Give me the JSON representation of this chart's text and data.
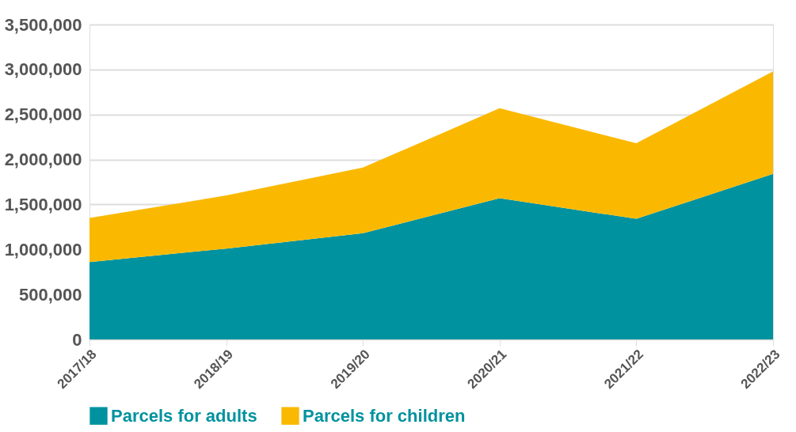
{
  "chart_data": {
    "type": "area",
    "stacked": true,
    "categories": [
      "2017/18",
      "2018/19",
      "2019/20",
      "2020/21",
      "2021/22",
      "2022/23"
    ],
    "series": [
      {
        "name": "Parcels for adults",
        "color": "#00929f",
        "values": [
          860000,
          1010000,
          1180000,
          1570000,
          1340000,
          1840000
        ]
      },
      {
        "name": "Parcels for children",
        "color": "#fab900",
        "values": [
          490000,
          590000,
          730000,
          1000000,
          840000,
          1140000
        ]
      }
    ],
    "ylim": [
      0,
      3500000
    ],
    "yticks": [
      0,
      {
        "value": 500000,
        "label": "500,000"
      },
      {
        "value": 1000000,
        "label": "1,000,000"
      },
      {
        "value": 1500000,
        "label": "1,500,000"
      },
      {
        "value": 2000000,
        "label": "2,000,000"
      },
      {
        "value": 2500000,
        "label": "2,500,000"
      },
      {
        "value": 3000000,
        "label": "3,000,000"
      },
      {
        "value": 3500000,
        "label": "3,500,000"
      }
    ],
    "grid": "y",
    "legend": "bottom"
  }
}
